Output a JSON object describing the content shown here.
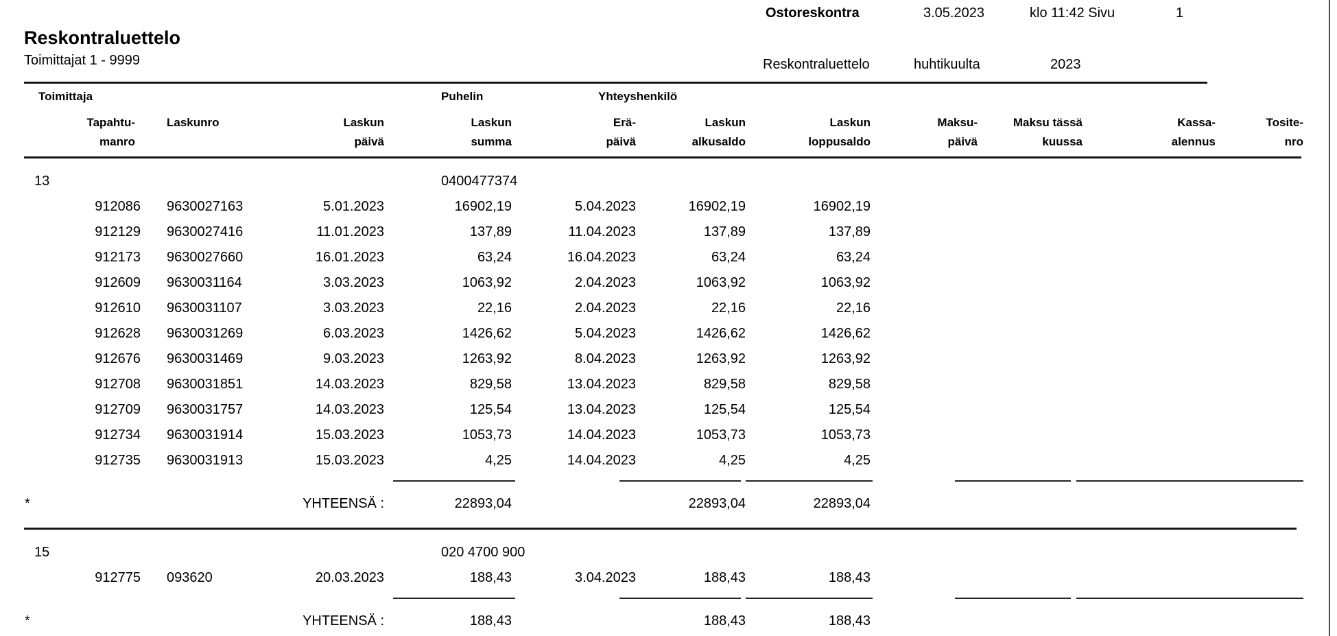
{
  "page_header": {
    "module": "Ostoreskontra",
    "print_date": "3.05.2023",
    "time_and_page_label": "klo 11:42 Sivu",
    "page_number": "1",
    "report_name": "Reskontraluettelo",
    "period_month": "huhtikuulta",
    "period_year": "2023"
  },
  "report_title": {
    "title": "Reskontraluettelo",
    "subtitle": "Toimittajat 1 - 9999"
  },
  "table": {
    "group_headers": {
      "toimittaja": "Toimittaja",
      "puhelin": "Puhelin",
      "yhteyshenkilo": "Yhteyshenkilö"
    },
    "columns": [
      {
        "line1": "Tapahtu-",
        "line2": "manro"
      },
      {
        "line1": "Laskunro",
        "line2": ""
      },
      {
        "line1": "Laskun",
        "line2": "päivä"
      },
      {
        "line1": "Laskun",
        "line2": "summa"
      },
      {
        "line1": "Erä-",
        "line2": "päivä"
      },
      {
        "line1": "Laskun",
        "line2": "alkusaldo"
      },
      {
        "line1": "Laskun",
        "line2": "loppusaldo"
      },
      {
        "line1": "Maksu-",
        "line2": "päivä"
      },
      {
        "line1": "Maksu tässä",
        "line2": "kuussa"
      },
      {
        "line1": "Kassa-",
        "line2": "alennus"
      },
      {
        "line1": "Tosite-",
        "line2": "nro"
      }
    ],
    "total_marker": "*",
    "total_label": "YHTEENSÄ :",
    "sections": [
      {
        "supplier_id": "13",
        "phone": "0400477374",
        "rows": [
          {
            "tapahtumanro": "912086",
            "laskunro": "9630027163",
            "laskun_paiva": "5.01.2023",
            "laskun_summa": "16902,19",
            "erapaiva": "5.04.2023",
            "alkusaldo": "16902,19",
            "loppusaldo": "16902,19"
          },
          {
            "tapahtumanro": "912129",
            "laskunro": "9630027416",
            "laskun_paiva": "11.01.2023",
            "laskun_summa": "137,89",
            "erapaiva": "11.04.2023",
            "alkusaldo": "137,89",
            "loppusaldo": "137,89"
          },
          {
            "tapahtumanro": "912173",
            "laskunro": "9630027660",
            "laskun_paiva": "16.01.2023",
            "laskun_summa": "63,24",
            "erapaiva": "16.04.2023",
            "alkusaldo": "63,24",
            "loppusaldo": "63,24"
          },
          {
            "tapahtumanro": "912609",
            "laskunro": "9630031164",
            "laskun_paiva": "3.03.2023",
            "laskun_summa": "1063,92",
            "erapaiva": "2.04.2023",
            "alkusaldo": "1063,92",
            "loppusaldo": "1063,92"
          },
          {
            "tapahtumanro": "912610",
            "laskunro": "9630031107",
            "laskun_paiva": "3.03.2023",
            "laskun_summa": "22,16",
            "erapaiva": "2.04.2023",
            "alkusaldo": "22,16",
            "loppusaldo": "22,16"
          },
          {
            "tapahtumanro": "912628",
            "laskunro": "9630031269",
            "laskun_paiva": "6.03.2023",
            "laskun_summa": "1426,62",
            "erapaiva": "5.04.2023",
            "alkusaldo": "1426,62",
            "loppusaldo": "1426,62"
          },
          {
            "tapahtumanro": "912676",
            "laskunro": "9630031469",
            "laskun_paiva": "9.03.2023",
            "laskun_summa": "1263,92",
            "erapaiva": "8.04.2023",
            "alkusaldo": "1263,92",
            "loppusaldo": "1263,92"
          },
          {
            "tapahtumanro": "912708",
            "laskunro": "9630031851",
            "laskun_paiva": "14.03.2023",
            "laskun_summa": "829,58",
            "erapaiva": "13.04.2023",
            "alkusaldo": "829,58",
            "loppusaldo": "829,58"
          },
          {
            "tapahtumanro": "912709",
            "laskunro": "9630031757",
            "laskun_paiva": "14.03.2023",
            "laskun_summa": "125,54",
            "erapaiva": "13.04.2023",
            "alkusaldo": "125,54",
            "loppusaldo": "125,54"
          },
          {
            "tapahtumanro": "912734",
            "laskunro": "9630031914",
            "laskun_paiva": "15.03.2023",
            "laskun_summa": "1053,73",
            "erapaiva": "14.04.2023",
            "alkusaldo": "1053,73",
            "loppusaldo": "1053,73"
          },
          {
            "tapahtumanro": "912735",
            "laskunro": "9630031913",
            "laskun_paiva": "15.03.2023",
            "laskun_summa": "4,25",
            "erapaiva": "14.04.2023",
            "alkusaldo": "4,25",
            "loppusaldo": "4,25"
          }
        ],
        "total": {
          "laskun_summa": "22893,04",
          "alkusaldo": "22893,04",
          "loppusaldo": "22893,04"
        }
      },
      {
        "supplier_id": "15",
        "phone": "020 4700 900",
        "rows": [
          {
            "tapahtumanro": "912775",
            "laskunro": "093620",
            "laskun_paiva": "20.03.2023",
            "laskun_summa": "188,43",
            "erapaiva": "3.04.2023",
            "alkusaldo": "188,43",
            "loppusaldo": "188,43"
          }
        ],
        "total": {
          "laskun_summa": "188,43",
          "alkusaldo": "188,43",
          "loppusaldo": "188,43"
        }
      }
    ]
  },
  "colors": {
    "text": "#000000",
    "rule": "#161616",
    "background": "#ffffff"
  }
}
